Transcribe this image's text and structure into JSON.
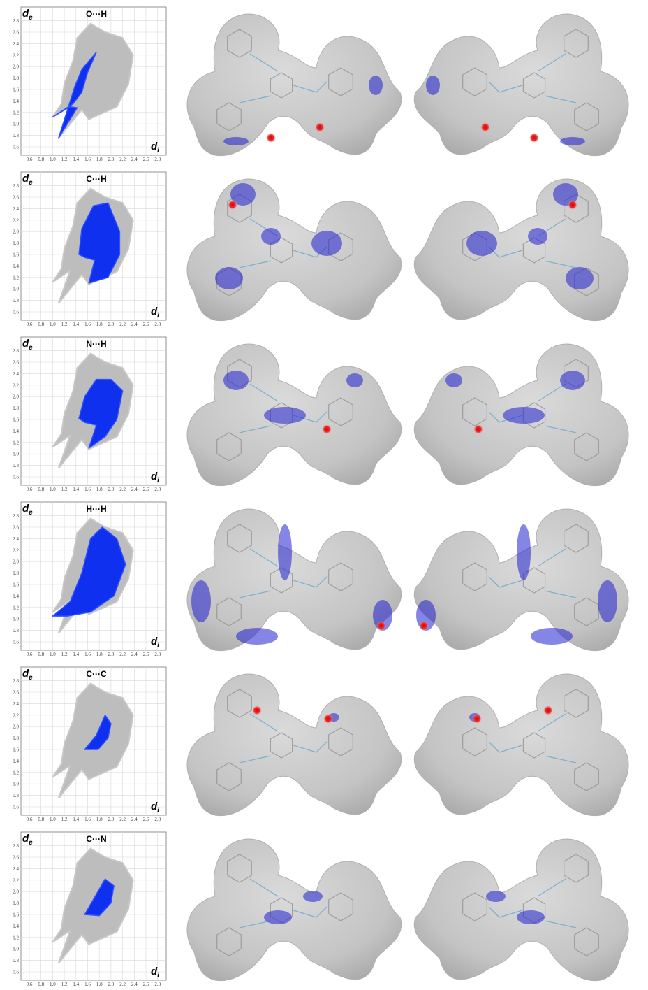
{
  "axis": {
    "ticks": [
      "0.6",
      "0.8",
      "1.0",
      "1.2",
      "1.4",
      "1.6",
      "1.8",
      "2.0",
      "2.2",
      "2.4",
      "2.6",
      "2.8"
    ],
    "y_label": "d",
    "y_sub": "e",
    "x_label": "d",
    "x_sub": "i"
  },
  "panels": [
    {
      "label": "O···H"
    },
    {
      "label": "C···H"
    },
    {
      "label": "N···H"
    },
    {
      "label": "H···H"
    },
    {
      "label": "C···C"
    },
    {
      "label": "C···N"
    }
  ]
}
